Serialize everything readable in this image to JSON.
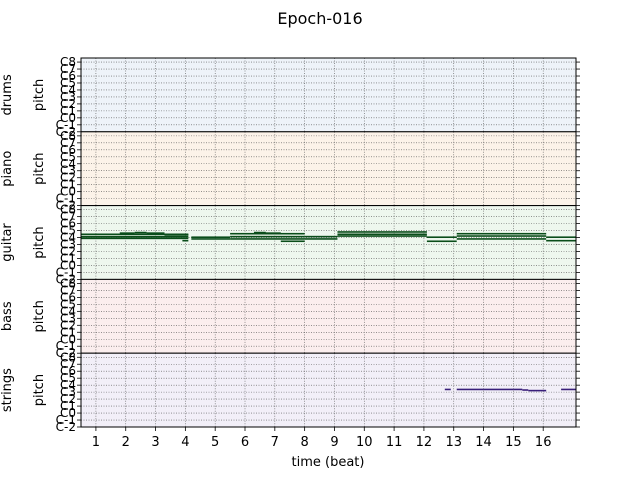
{
  "chart_data": {
    "type": "pianoroll",
    "title": "Epoch-016",
    "xlabel": "time (beat)",
    "ylabel": "pitch",
    "x_ticks": [
      "1",
      "2",
      "3",
      "4",
      "5",
      "6",
      "7",
      "8",
      "9",
      "10",
      "11",
      "12",
      "13",
      "14",
      "15",
      "16"
    ],
    "x_range": [
      0.5,
      17.1
    ],
    "pitch_range": [
      0,
      127
    ],
    "y_ticks": [
      {
        "label": "C-2",
        "pitch": 0
      },
      {
        "label": "C-1",
        "pitch": 12
      },
      {
        "label": "C0",
        "pitch": 24
      },
      {
        "label": "C1",
        "pitch": 36
      },
      {
        "label": "C2",
        "pitch": 48
      },
      {
        "label": "C3",
        "pitch": 60
      },
      {
        "label": "C4",
        "pitch": 72
      },
      {
        "label": "C5",
        "pitch": 84
      },
      {
        "label": "C6",
        "pitch": 96
      },
      {
        "label": "C7",
        "pitch": 108
      },
      {
        "label": "C8",
        "pitch": 120
      }
    ],
    "grid": true,
    "tracks": [
      {
        "name": "drums",
        "bg": "#eef3f9",
        "note_color": "#1f4e99",
        "notes": []
      },
      {
        "name": "piano",
        "bg": "#fcf3e9",
        "note_color": "#a35a00",
        "notes": []
      },
      {
        "name": "guitar",
        "bg": "#eef7ee",
        "note_color": "#0a4d1a",
        "notes": [
          {
            "start": 0.5,
            "end": 4.1,
            "pitch": 78
          },
          {
            "start": 0.5,
            "end": 4.1,
            "pitch": 74
          },
          {
            "start": 0.5,
            "end": 4.1,
            "pitch": 71
          },
          {
            "start": 1.8,
            "end": 2.3,
            "pitch": 80
          },
          {
            "start": 2.3,
            "end": 2.7,
            "pitch": 81
          },
          {
            "start": 2.7,
            "end": 3.3,
            "pitch": 80
          },
          {
            "start": 3.3,
            "end": 4.1,
            "pitch": 77
          },
          {
            "start": 3.9,
            "end": 4.1,
            "pitch": 67
          },
          {
            "start": 4.2,
            "end": 5.5,
            "pitch": 73
          },
          {
            "start": 4.2,
            "end": 5.5,
            "pitch": 70
          },
          {
            "start": 5.5,
            "end": 8.0,
            "pitch": 79
          },
          {
            "start": 5.5,
            "end": 8.0,
            "pitch": 74
          },
          {
            "start": 5.5,
            "end": 8.0,
            "pitch": 70
          },
          {
            "start": 6.3,
            "end": 6.7,
            "pitch": 81
          },
          {
            "start": 6.7,
            "end": 7.2,
            "pitch": 80
          },
          {
            "start": 7.2,
            "end": 8.0,
            "pitch": 66
          },
          {
            "start": 8.0,
            "end": 9.1,
            "pitch": 74
          },
          {
            "start": 8.0,
            "end": 9.1,
            "pitch": 70
          },
          {
            "start": 9.1,
            "end": 12.1,
            "pitch": 82
          },
          {
            "start": 9.1,
            "end": 12.1,
            "pitch": 78
          },
          {
            "start": 9.1,
            "end": 12.1,
            "pitch": 75
          },
          {
            "start": 12.1,
            "end": 13.1,
            "pitch": 73
          },
          {
            "start": 12.1,
            "end": 13.1,
            "pitch": 66
          },
          {
            "start": 13.1,
            "end": 16.1,
            "pitch": 79
          },
          {
            "start": 13.1,
            "end": 16.1,
            "pitch": 75
          },
          {
            "start": 13.1,
            "end": 16.1,
            "pitch": 70
          },
          {
            "start": 16.1,
            "end": 17.1,
            "pitch": 73
          },
          {
            "start": 16.1,
            "end": 17.1,
            "pitch": 67
          }
        ]
      },
      {
        "name": "bass",
        "bg": "#fbeeee",
        "note_color": "#8a1010",
        "notes": []
      },
      {
        "name": "strings",
        "bg": "#f2eff8",
        "note_color": "#3a1f7a",
        "notes": [
          {
            "start": 12.7,
            "end": 12.9,
            "pitch": 65
          },
          {
            "start": 13.1,
            "end": 14.0,
            "pitch": 65
          },
          {
            "start": 14.0,
            "end": 15.0,
            "pitch": 65
          },
          {
            "start": 15.0,
            "end": 15.3,
            "pitch": 65
          },
          {
            "start": 15.3,
            "end": 15.5,
            "pitch": 64
          },
          {
            "start": 15.5,
            "end": 16.1,
            "pitch": 63
          },
          {
            "start": 16.6,
            "end": 17.1,
            "pitch": 65
          }
        ]
      }
    ]
  }
}
